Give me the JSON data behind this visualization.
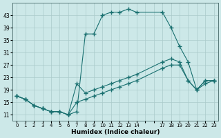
{
  "xlabel": "Humidex (Indice chaleur)",
  "bg_color": "#cce8e8",
  "line_color": "#1a7070",
  "grid_color": "#aacaca",
  "series": [
    {
      "x": [
        0,
        1,
        2,
        3,
        4,
        5,
        6,
        7,
        8,
        9,
        10,
        11,
        12,
        13,
        14,
        17,
        18,
        19,
        20,
        21,
        22,
        23
      ],
      "y": [
        17,
        16,
        14,
        13,
        12,
        12,
        11,
        12,
        37,
        37,
        43,
        44,
        44,
        45,
        44,
        44,
        39,
        33,
        28,
        19,
        22,
        22
      ]
    },
    {
      "x": [
        0,
        1,
        2,
        3,
        4,
        5,
        6,
        7,
        8,
        9,
        10,
        11,
        12,
        13,
        14,
        17,
        18,
        19,
        20,
        21,
        22,
        23
      ],
      "y": [
        17,
        16,
        14,
        13,
        12,
        12,
        11,
        21,
        18,
        19,
        20,
        21,
        22,
        23,
        24,
        28,
        29,
        28,
        22,
        19,
        22,
        22
      ]
    },
    {
      "x": [
        0,
        1,
        2,
        3,
        4,
        5,
        6,
        7,
        8,
        9,
        10,
        11,
        12,
        13,
        14,
        17,
        18,
        19,
        20,
        21,
        22,
        23
      ],
      "y": [
        17,
        16,
        14,
        13,
        12,
        12,
        11,
        15,
        16,
        17,
        18,
        19,
        20,
        21,
        22,
        26,
        27,
        27,
        22,
        19,
        21,
        22
      ]
    }
  ],
  "yticks": [
    11,
    15,
    19,
    23,
    27,
    31,
    35,
    39,
    43
  ],
  "xtick_labels": [
    "0",
    "1",
    "2",
    "3",
    "4",
    "5",
    "6",
    "7",
    "8",
    "9",
    "10",
    "11",
    "12",
    "13",
    "14",
    "17",
    "18",
    "19",
    "20",
    "21",
    "22",
    "23"
  ],
  "xlim": [
    -0.5,
    23.5
  ],
  "ylim": [
    9,
    47
  ]
}
